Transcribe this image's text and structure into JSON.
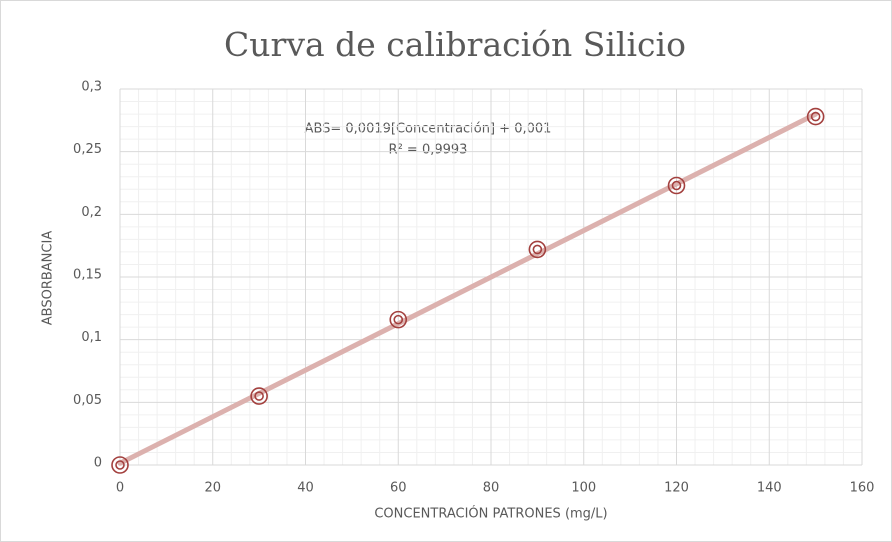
{
  "chart_data": {
    "type": "scatter",
    "title": "Curva de calibración Silicio",
    "xlabel": "CONCENTRACIÓN PATRONES (mg/L)",
    "ylabel": "ABSORBANCIA",
    "annotations": [
      "ABS= 0,0019[Concentración] + 0,001",
      "R² = 0,9993"
    ],
    "x": [
      0,
      30,
      60,
      90,
      120,
      150
    ],
    "series": [
      {
        "color": "#a3403e",
        "values": [
          0,
          0.055,
          0.116,
          0.172,
          0.223,
          0.278
        ]
      }
    ],
    "trendline": true,
    "trendline_color": "#dcb1ae",
    "xlim": [
      0,
      160
    ],
    "xticks": [
      0,
      20,
      40,
      60,
      80,
      100,
      120,
      140,
      160
    ],
    "ylim": [
      0,
      0.3
    ],
    "yticks": [
      0,
      {
        "value": 0.05,
        "label": "0,05"
      },
      {
        "value": 0.1,
        "label": "0,1"
      },
      {
        "value": 0.15,
        "label": "0,15"
      },
      {
        "value": 0.2,
        "label": "0,2"
      },
      {
        "value": 0.25,
        "label": "0,25"
      },
      {
        "value": 0.3,
        "label": "0,3"
      }
    ],
    "grid": true,
    "minor_grid": true
  }
}
